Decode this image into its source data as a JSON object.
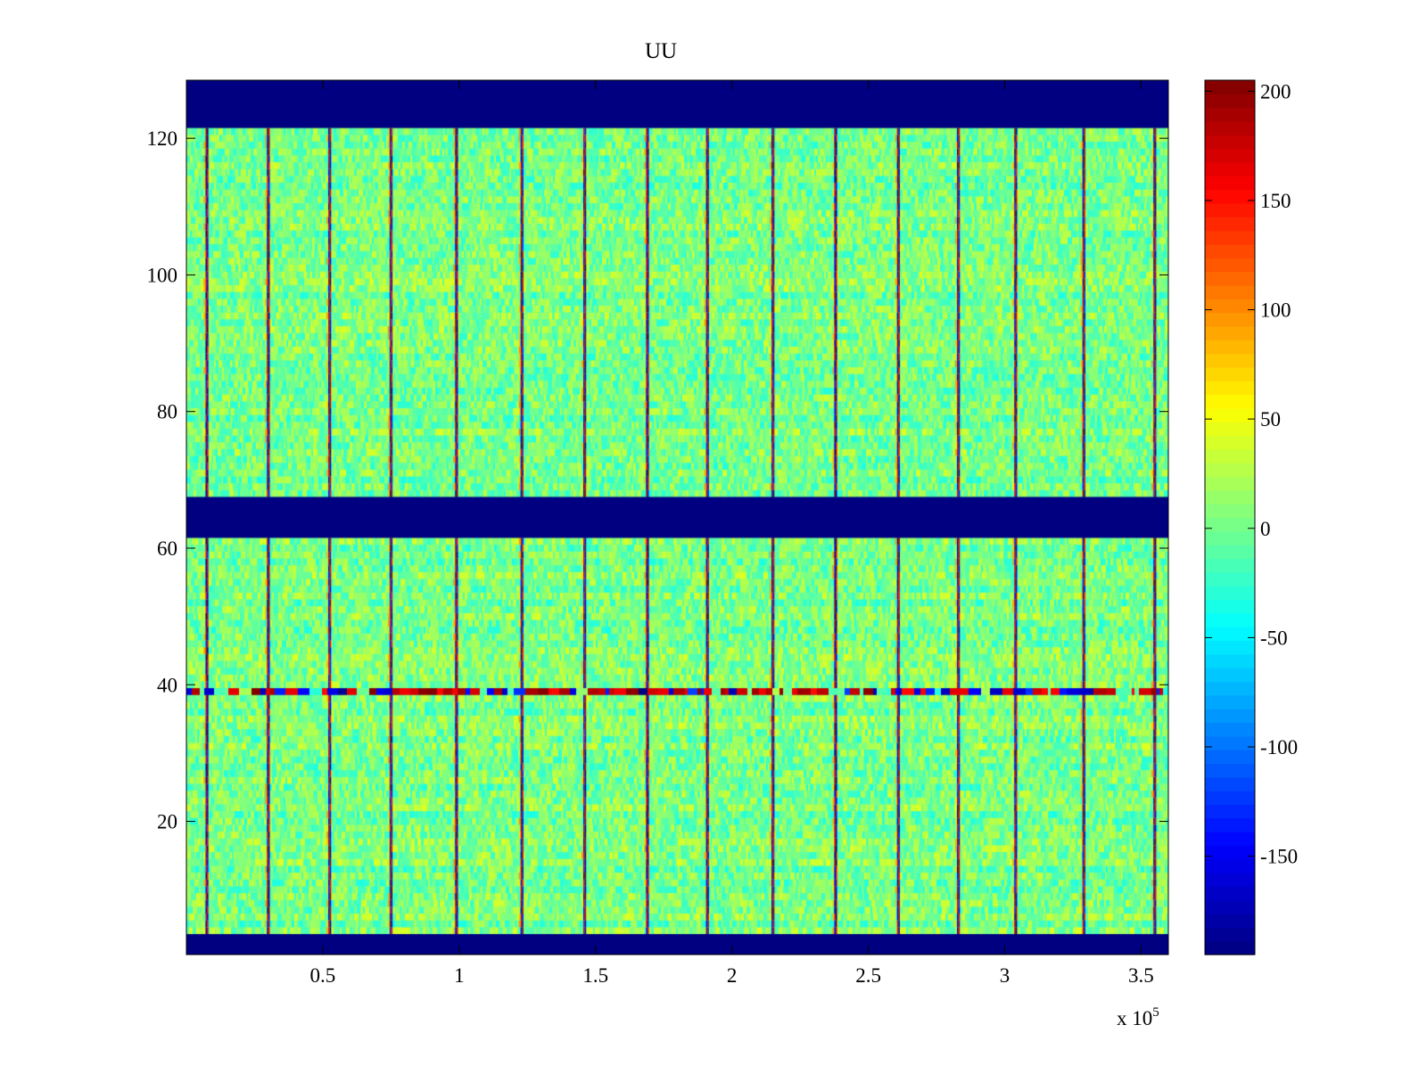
{
  "chart_data": {
    "type": "heatmap",
    "title": "UU",
    "xlabel": "",
    "ylabel": "",
    "x_exponent_label": "x 10",
    "x_exponent": "5",
    "xlim": [
      0,
      3.6
    ],
    "ylim": [
      0.5,
      128.5
    ],
    "x_ticks": [
      0.5,
      1,
      1.5,
      2,
      2.5,
      3,
      3.5
    ],
    "x_tick_labels": [
      "0.5",
      "1",
      "1.5",
      "2",
      "2.5",
      "3",
      "3.5"
    ],
    "y_ticks": [
      20,
      40,
      60,
      80,
      100,
      120
    ],
    "y_tick_labels": [
      "20",
      "40",
      "60",
      "80",
      "100",
      "120"
    ],
    "colormap": "jet",
    "clim": [
      -195,
      205
    ],
    "colorbar_ticks": [
      200,
      150,
      100,
      50,
      0,
      -50,
      -100,
      -150
    ],
    "colorbar_tick_labels": [
      "200",
      "150",
      "100",
      "50",
      "0",
      "-50",
      "-100",
      "-150"
    ],
    "baseline_value": 0,
    "noise_amplitude": 32,
    "masked_value": -195,
    "masked_row_bands": [
      [
        0.5,
        3.5
      ],
      [
        61.5,
        67.5
      ],
      [
        121.5,
        128.5
      ]
    ],
    "stripe_x_positions": [
      0.075,
      0.3,
      0.525,
      0.75,
      0.99,
      1.23,
      1.46,
      1.69,
      1.91,
      2.15,
      2.38,
      2.61,
      2.83,
      3.04,
      3.29,
      3.55
    ],
    "anomalous_row": 39,
    "anomalous_row_pattern": "alternating high and low values (about +200 / -190)"
  }
}
